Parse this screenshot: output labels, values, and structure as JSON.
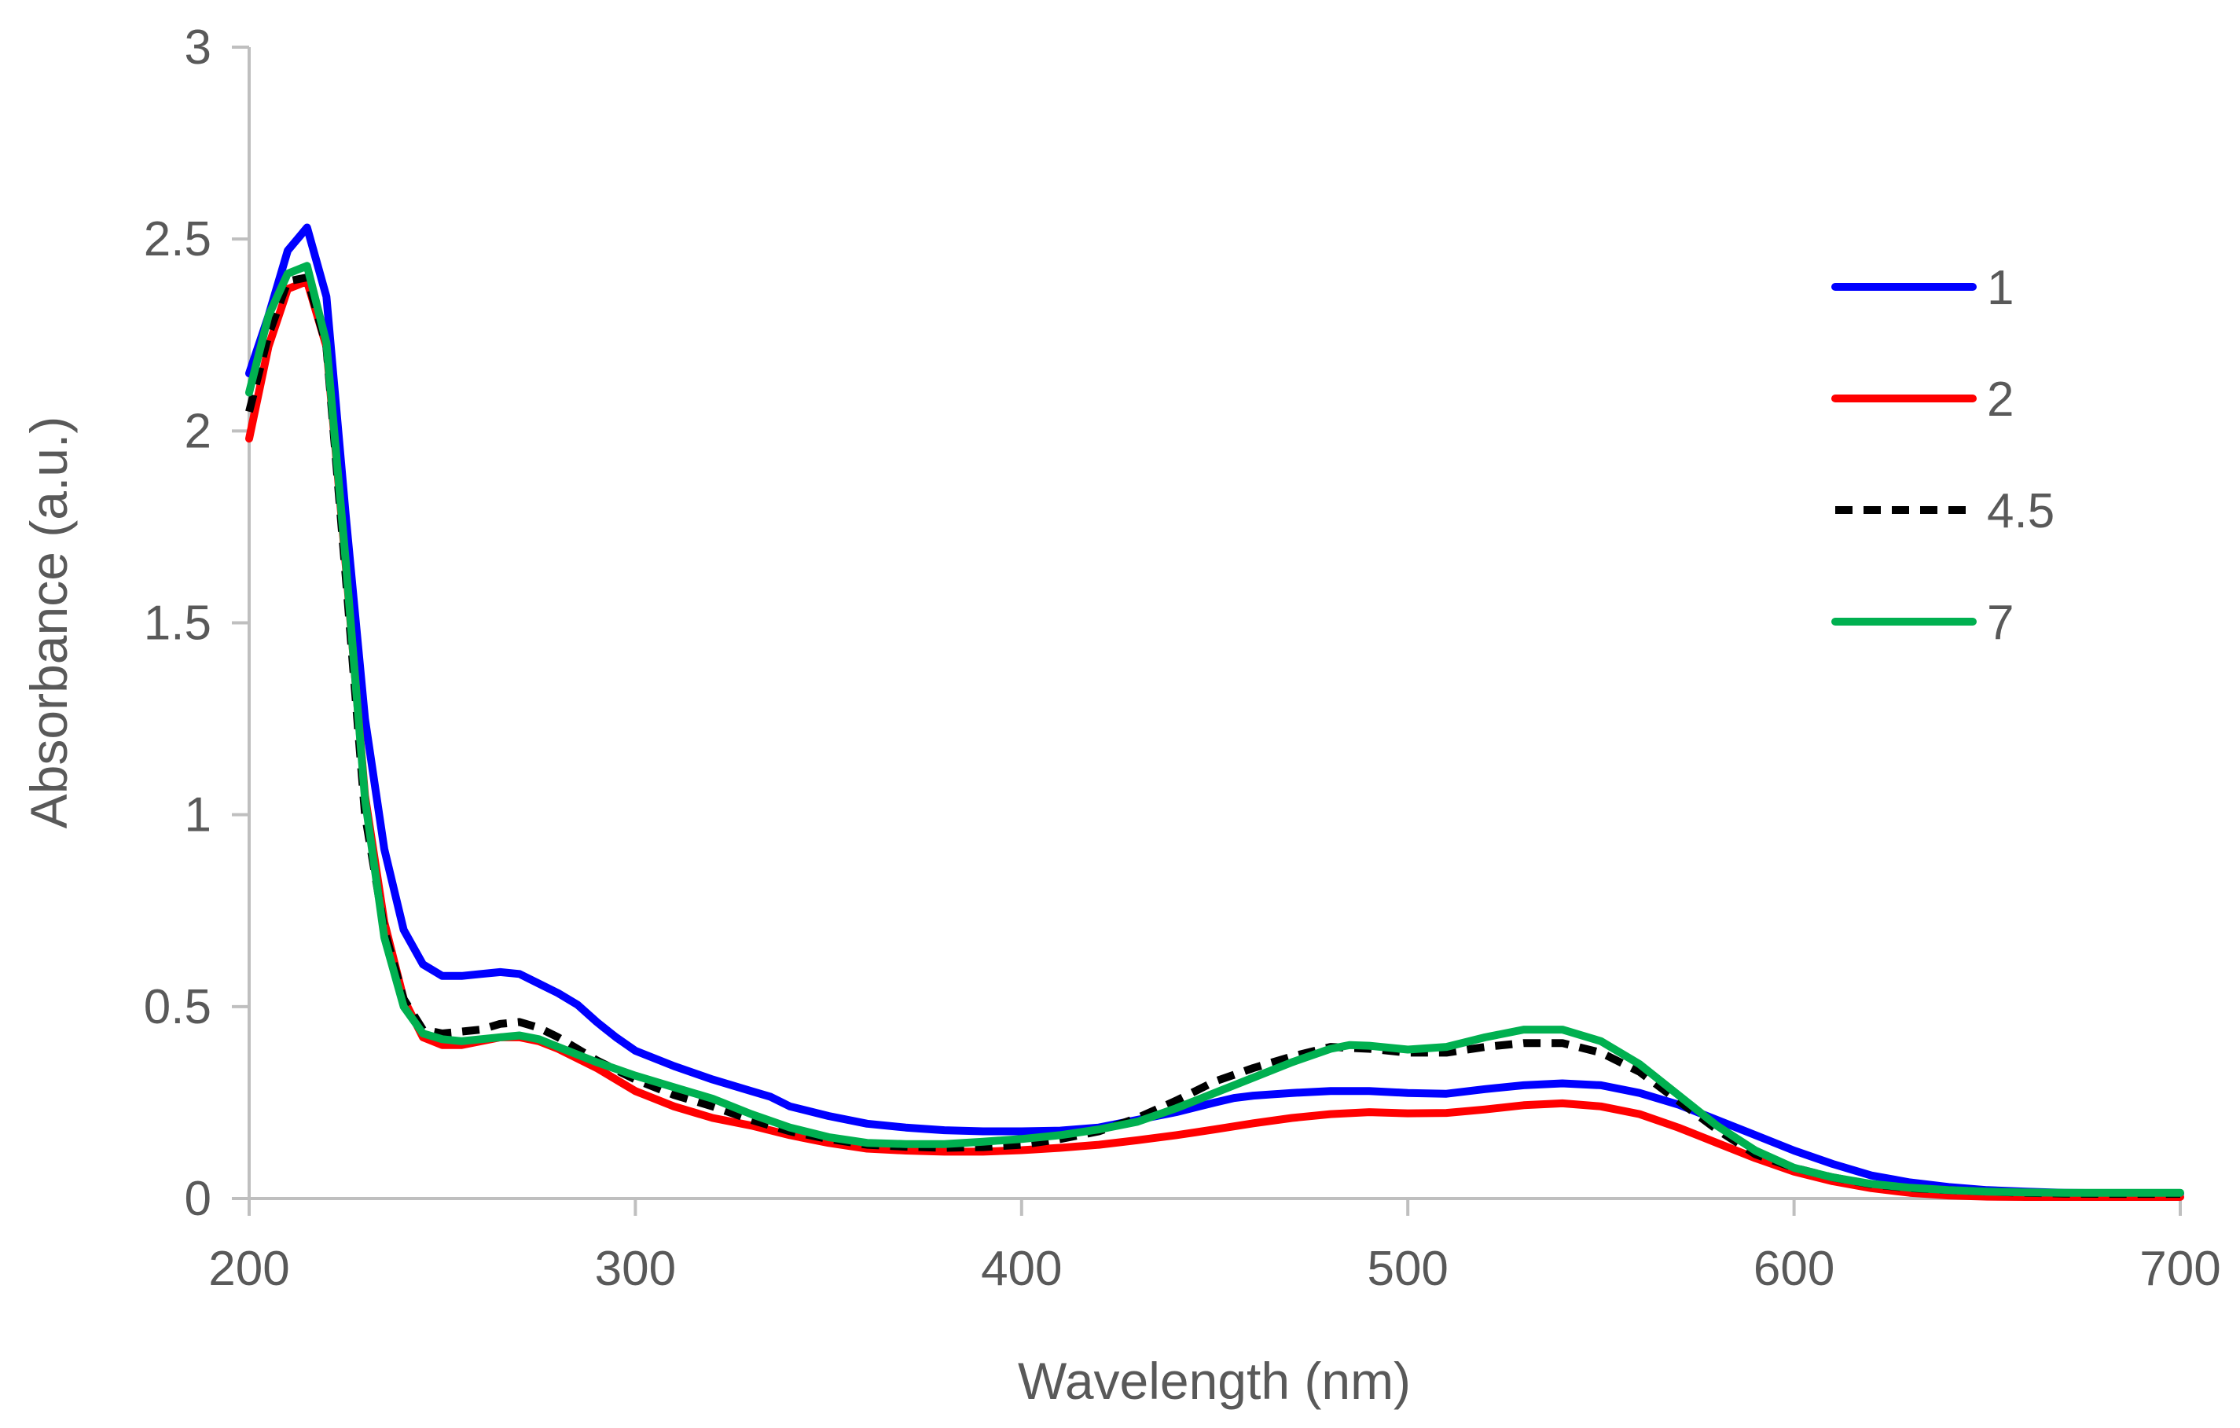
{
  "chart_data": {
    "type": "line",
    "title": "",
    "xlabel": "Wavelength (nm)",
    "ylabel": "Absorbance (a.u.)",
    "xlim": [
      200,
      700
    ],
    "ylim": [
      0,
      3
    ],
    "xticks": [
      200,
      300,
      400,
      500,
      600,
      700
    ],
    "yticks": [
      0,
      0.5,
      1,
      1.5,
      2,
      2.5,
      3
    ],
    "xtick_labels": [
      "200",
      "300",
      "400",
      "500",
      "600",
      "700"
    ],
    "ytick_labels": [
      "0",
      "0.5",
      "1",
      "1.5",
      "2",
      "2.5",
      "3"
    ],
    "grid": false,
    "legend_position": "right",
    "series": [
      {
        "name": "1",
        "color": "#0000ff",
        "dash": "solid",
        "points": [
          [
            200,
            2.15
          ],
          [
            205,
            2.3
          ],
          [
            210,
            2.47
          ],
          [
            215,
            2.53
          ],
          [
            220,
            2.35
          ],
          [
            225,
            1.78
          ],
          [
            230,
            1.25
          ],
          [
            235,
            0.91
          ],
          [
            240,
            0.7
          ],
          [
            245,
            0.61
          ],
          [
            250,
            0.58
          ],
          [
            255,
            0.58
          ],
          [
            260,
            0.585
          ],
          [
            265,
            0.59
          ],
          [
            270,
            0.585
          ],
          [
            275,
            0.56
          ],
          [
            280,
            0.535
          ],
          [
            285,
            0.505
          ],
          [
            290,
            0.46
          ],
          [
            295,
            0.42
          ],
          [
            300,
            0.385
          ],
          [
            310,
            0.345
          ],
          [
            320,
            0.31
          ],
          [
            330,
            0.28
          ],
          [
            335,
            0.265
          ],
          [
            340,
            0.24
          ],
          [
            350,
            0.215
          ],
          [
            360,
            0.195
          ],
          [
            370,
            0.185
          ],
          [
            380,
            0.178
          ],
          [
            390,
            0.175
          ],
          [
            400,
            0.175
          ],
          [
            410,
            0.177
          ],
          [
            420,
            0.185
          ],
          [
            430,
            0.205
          ],
          [
            440,
            0.225
          ],
          [
            450,
            0.25
          ],
          [
            455,
            0.262
          ],
          [
            460,
            0.268
          ],
          [
            470,
            0.275
          ],
          [
            480,
            0.28
          ],
          [
            490,
            0.28
          ],
          [
            500,
            0.275
          ],
          [
            510,
            0.273
          ],
          [
            520,
            0.285
          ],
          [
            530,
            0.295
          ],
          [
            540,
            0.3
          ],
          [
            550,
            0.295
          ],
          [
            560,
            0.275
          ],
          [
            570,
            0.245
          ],
          [
            580,
            0.205
          ],
          [
            590,
            0.165
          ],
          [
            600,
            0.125
          ],
          [
            610,
            0.09
          ],
          [
            620,
            0.06
          ],
          [
            630,
            0.042
          ],
          [
            640,
            0.03
          ],
          [
            650,
            0.022
          ],
          [
            660,
            0.018
          ],
          [
            670,
            0.015
          ],
          [
            680,
            0.014
          ],
          [
            690,
            0.013
          ],
          [
            700,
            0.013
          ]
        ]
      },
      {
        "name": "2",
        "color": "#ff0000",
        "dash": "solid",
        "points": [
          [
            200,
            1.98
          ],
          [
            205,
            2.22
          ],
          [
            210,
            2.37
          ],
          [
            215,
            2.39
          ],
          [
            220,
            2.22
          ],
          [
            225,
            1.65
          ],
          [
            230,
            1.05
          ],
          [
            235,
            0.72
          ],
          [
            240,
            0.52
          ],
          [
            245,
            0.42
          ],
          [
            250,
            0.4
          ],
          [
            255,
            0.4
          ],
          [
            260,
            0.41
          ],
          [
            265,
            0.42
          ],
          [
            270,
            0.42
          ],
          [
            275,
            0.41
          ],
          [
            280,
            0.39
          ],
          [
            290,
            0.34
          ],
          [
            300,
            0.28
          ],
          [
            310,
            0.24
          ],
          [
            320,
            0.21
          ],
          [
            330,
            0.19
          ],
          [
            340,
            0.165
          ],
          [
            350,
            0.145
          ],
          [
            360,
            0.13
          ],
          [
            370,
            0.125
          ],
          [
            380,
            0.122
          ],
          [
            390,
            0.122
          ],
          [
            400,
            0.126
          ],
          [
            410,
            0.132
          ],
          [
            420,
            0.14
          ],
          [
            430,
            0.152
          ],
          [
            440,
            0.165
          ],
          [
            450,
            0.18
          ],
          [
            460,
            0.196
          ],
          [
            470,
            0.21
          ],
          [
            480,
            0.22
          ],
          [
            490,
            0.225
          ],
          [
            500,
            0.222
          ],
          [
            510,
            0.223
          ],
          [
            520,
            0.232
          ],
          [
            530,
            0.243
          ],
          [
            540,
            0.248
          ],
          [
            550,
            0.24
          ],
          [
            560,
            0.22
          ],
          [
            570,
            0.185
          ],
          [
            580,
            0.145
          ],
          [
            590,
            0.105
          ],
          [
            600,
            0.07
          ],
          [
            610,
            0.045
          ],
          [
            620,
            0.027
          ],
          [
            630,
            0.015
          ],
          [
            640,
            0.008
          ],
          [
            650,
            0.005
          ],
          [
            660,
            0.004
          ],
          [
            670,
            0.004
          ],
          [
            680,
            0.004
          ],
          [
            690,
            0.004
          ],
          [
            700,
            0.004
          ]
        ]
      },
      {
        "name": "4.5",
        "color": "#000000",
        "dash": "dashed",
        "points": [
          [
            200,
            2.05
          ],
          [
            205,
            2.25
          ],
          [
            210,
            2.39
          ],
          [
            215,
            2.4
          ],
          [
            220,
            2.22
          ],
          [
            225,
            1.62
          ],
          [
            230,
            1.0
          ],
          [
            235,
            0.7
          ],
          [
            240,
            0.52
          ],
          [
            245,
            0.44
          ],
          [
            250,
            0.43
          ],
          [
            255,
            0.435
          ],
          [
            260,
            0.44
          ],
          [
            265,
            0.455
          ],
          [
            270,
            0.46
          ],
          [
            275,
            0.445
          ],
          [
            280,
            0.42
          ],
          [
            290,
            0.36
          ],
          [
            300,
            0.31
          ],
          [
            310,
            0.27
          ],
          [
            320,
            0.24
          ],
          [
            330,
            0.205
          ],
          [
            340,
            0.175
          ],
          [
            350,
            0.155
          ],
          [
            360,
            0.14
          ],
          [
            370,
            0.135
          ],
          [
            380,
            0.132
          ],
          [
            390,
            0.134
          ],
          [
            400,
            0.14
          ],
          [
            410,
            0.155
          ],
          [
            420,
            0.175
          ],
          [
            430,
            0.21
          ],
          [
            440,
            0.255
          ],
          [
            450,
            0.305
          ],
          [
            460,
            0.34
          ],
          [
            470,
            0.37
          ],
          [
            480,
            0.395
          ],
          [
            490,
            0.39
          ],
          [
            500,
            0.38
          ],
          [
            510,
            0.38
          ],
          [
            520,
            0.395
          ],
          [
            530,
            0.405
          ],
          [
            540,
            0.405
          ],
          [
            550,
            0.38
          ],
          [
            560,
            0.33
          ],
          [
            570,
            0.255
          ],
          [
            580,
            0.18
          ],
          [
            590,
            0.115
          ],
          [
            600,
            0.08
          ],
          [
            610,
            0.055
          ],
          [
            620,
            0.037
          ],
          [
            630,
            0.027
          ],
          [
            640,
            0.022
          ],
          [
            650,
            0.018
          ],
          [
            660,
            0.015
          ],
          [
            670,
            0.013
          ],
          [
            680,
            0.012
          ],
          [
            690,
            0.012
          ],
          [
            700,
            0.012
          ]
        ]
      },
      {
        "name": "7",
        "color": "#00b050",
        "dash": "solid",
        "points": [
          [
            200,
            2.1
          ],
          [
            205,
            2.3
          ],
          [
            210,
            2.41
          ],
          [
            215,
            2.43
          ],
          [
            220,
            2.23
          ],
          [
            225,
            1.66
          ],
          [
            230,
            1.04
          ],
          [
            235,
            0.68
          ],
          [
            240,
            0.5
          ],
          [
            245,
            0.43
          ],
          [
            250,
            0.415
          ],
          [
            255,
            0.41
          ],
          [
            260,
            0.415
          ],
          [
            265,
            0.42
          ],
          [
            270,
            0.425
          ],
          [
            275,
            0.415
          ],
          [
            280,
            0.395
          ],
          [
            290,
            0.355
          ],
          [
            300,
            0.32
          ],
          [
            310,
            0.29
          ],
          [
            320,
            0.26
          ],
          [
            330,
            0.22
          ],
          [
            340,
            0.185
          ],
          [
            350,
            0.16
          ],
          [
            360,
            0.145
          ],
          [
            370,
            0.142
          ],
          [
            380,
            0.142
          ],
          [
            390,
            0.148
          ],
          [
            400,
            0.155
          ],
          [
            410,
            0.165
          ],
          [
            420,
            0.18
          ],
          [
            430,
            0.2
          ],
          [
            440,
            0.235
          ],
          [
            450,
            0.275
          ],
          [
            460,
            0.315
          ],
          [
            470,
            0.355
          ],
          [
            480,
            0.39
          ],
          [
            485,
            0.4
          ],
          [
            490,
            0.398
          ],
          [
            500,
            0.388
          ],
          [
            510,
            0.395
          ],
          [
            520,
            0.42
          ],
          [
            530,
            0.44
          ],
          [
            540,
            0.44
          ],
          [
            550,
            0.41
          ],
          [
            560,
            0.35
          ],
          [
            570,
            0.27
          ],
          [
            580,
            0.19
          ],
          [
            590,
            0.125
          ],
          [
            600,
            0.08
          ],
          [
            610,
            0.055
          ],
          [
            620,
            0.038
          ],
          [
            630,
            0.028
          ],
          [
            640,
            0.022
          ],
          [
            650,
            0.018
          ],
          [
            660,
            0.016
          ],
          [
            670,
            0.015
          ],
          [
            680,
            0.015
          ],
          [
            690,
            0.015
          ],
          [
            700,
            0.015
          ]
        ]
      }
    ]
  }
}
